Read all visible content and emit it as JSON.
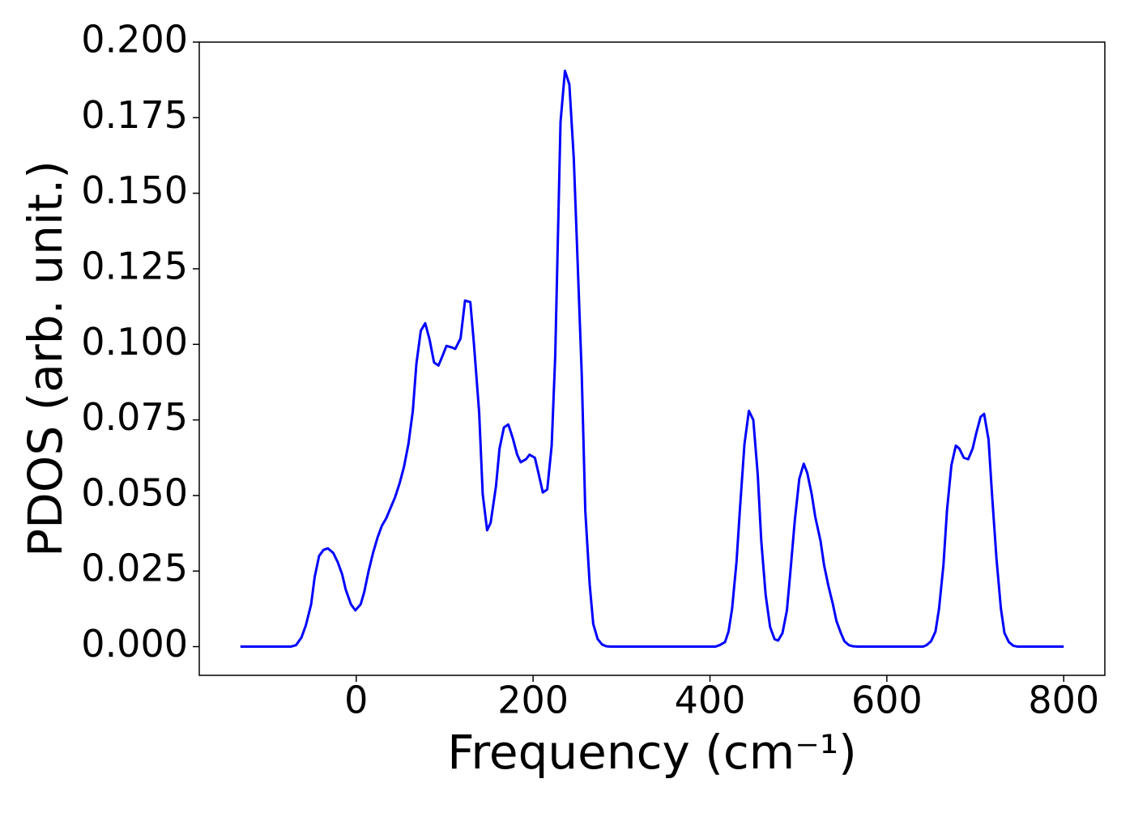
{
  "chart_data": {
    "type": "line",
    "x_label": "Frequency (cm⁻¹)",
    "y_label": "PDOS (arb. unit.)",
    "series": [
      {
        "color": "#0000ff",
        "x": [
          -131,
          -74,
          -68,
          -62,
          -57,
          -51,
          -47,
          -42,
          -37,
          -32,
          -26,
          -21,
          -16,
          -12,
          -6,
          -1,
          5,
          9,
          14,
          19,
          24,
          29,
          34,
          39,
          44,
          49,
          54,
          59,
          64,
          68,
          73,
          78,
          83,
          88,
          93,
          98,
          102,
          108,
          112,
          118,
          123,
          129,
          133,
          139,
          143,
          148,
          152,
          158,
          162,
          167,
          172,
          177,
          182,
          186,
          192,
          196,
          202,
          206,
          211,
          216,
          221,
          225,
          231,
          236,
          241,
          246,
          250,
          255,
          259,
          264,
          268,
          273,
          278,
          283,
          288,
          406,
          411,
          417,
          421,
          425,
          430,
          434,
          439,
          444,
          449,
          454,
          458,
          463,
          468,
          473,
          477,
          482,
          487,
          491,
          496,
          501,
          506,
          510,
          515,
          519,
          525,
          529,
          534,
          539,
          543,
          548,
          552,
          557,
          562,
          567,
          641,
          645,
          650,
          655,
          659,
          664,
          668,
          673,
          678,
          682,
          687,
          692,
          697,
          701,
          706,
          710,
          715,
          719,
          724,
          729,
          733,
          738,
          743,
          748,
          800
        ],
        "values": [
          0,
          0,
          0.0005,
          0.003,
          0.007,
          0.014,
          0.023,
          0.03,
          0.032,
          0.0325,
          0.031,
          0.028,
          0.024,
          0.019,
          0.014,
          0.012,
          0.014,
          0.018,
          0.025,
          0.031,
          0.036,
          0.04,
          0.0425,
          0.046,
          0.0495,
          0.054,
          0.0595,
          0.067,
          0.078,
          0.0935,
          0.1045,
          0.107,
          0.1015,
          0.094,
          0.093,
          0.0965,
          0.0995,
          0.099,
          0.0985,
          0.102,
          0.1145,
          0.114,
          0.1005,
          0.0775,
          0.0505,
          0.0385,
          0.041,
          0.053,
          0.0655,
          0.0725,
          0.0735,
          0.069,
          0.0635,
          0.061,
          0.062,
          0.0635,
          0.0625,
          0.0575,
          0.051,
          0.052,
          0.0665,
          0.096,
          0.1735,
          0.1905,
          0.186,
          0.1615,
          0.13,
          0.09,
          0.045,
          0.0205,
          0.0075,
          0.0025,
          0.0007,
          0.0001,
          0,
          0,
          0.0005,
          0.0015,
          0.005,
          0.0125,
          0.028,
          0.046,
          0.067,
          0.078,
          0.075,
          0.057,
          0.035,
          0.017,
          0.0065,
          0.0025,
          0.002,
          0.0045,
          0.012,
          0.025,
          0.042,
          0.0555,
          0.0605,
          0.0575,
          0.0505,
          0.043,
          0.035,
          0.027,
          0.02,
          0.014,
          0.0085,
          0.0045,
          0.0018,
          0.0005,
          0.0001,
          0,
          0,
          0.0005,
          0.0018,
          0.005,
          0.0125,
          0.027,
          0.045,
          0.06,
          0.0665,
          0.0655,
          0.0625,
          0.062,
          0.0655,
          0.0705,
          0.076,
          0.077,
          0.0685,
          0.05,
          0.029,
          0.0125,
          0.0045,
          0.0015,
          0.0003,
          0,
          0
        ]
      }
    ],
    "xlim": [
      -177.5,
      846.5
    ],
    "xticks": [
      0,
      200,
      400,
      600,
      800
    ],
    "ylim": [
      -0.0095,
      0.2
    ],
    "yticks": [
      {
        "value": 0,
        "label": "0.000"
      },
      {
        "value": 0.025,
        "label": "0.025"
      },
      {
        "value": 0.05,
        "label": "0.050"
      },
      {
        "value": 0.075,
        "label": "0.075"
      },
      {
        "value": 0.1,
        "label": "0.100"
      },
      {
        "value": 0.125,
        "label": "0.125"
      },
      {
        "value": 0.15,
        "label": "0.150"
      },
      {
        "value": 0.175,
        "label": "0.175"
      },
      {
        "value": 0.2,
        "label": "0.200"
      }
    ],
    "grid": false
  }
}
